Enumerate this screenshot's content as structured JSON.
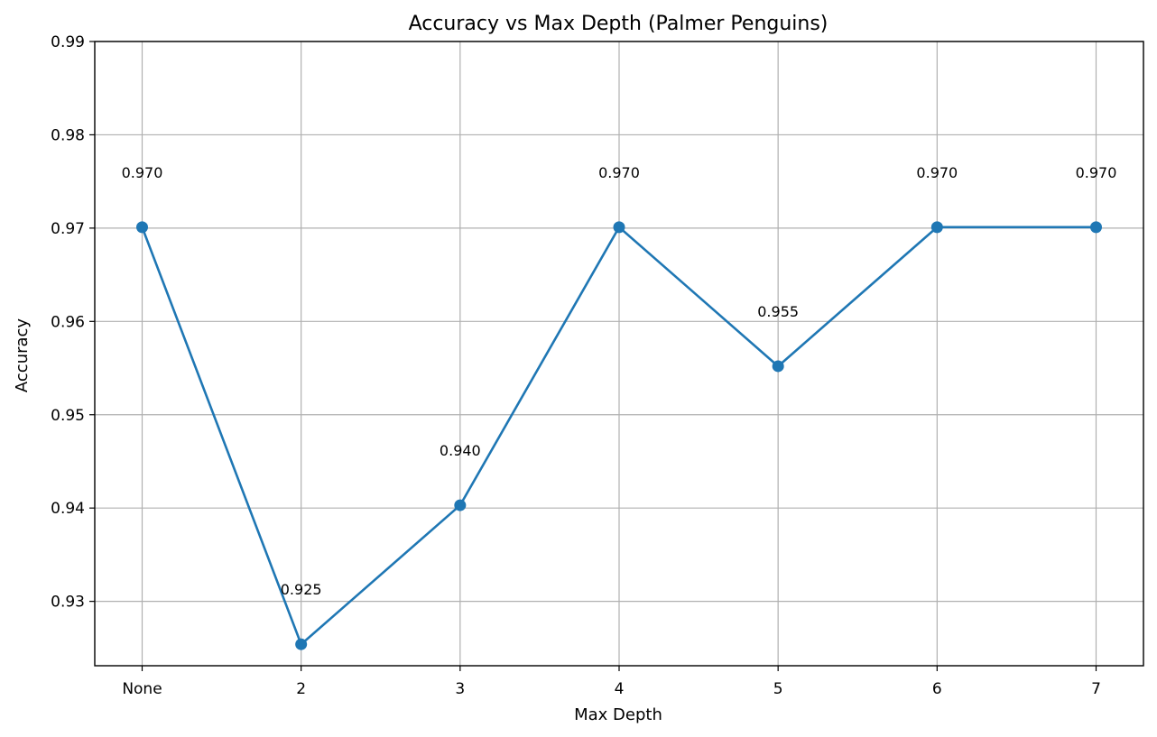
{
  "chart_data": {
    "type": "line",
    "title": "Accuracy vs Max Depth (Palmer Penguins)",
    "xlabel": "Max Depth",
    "ylabel": "Accuracy",
    "categories": [
      "None",
      "2",
      "3",
      "4",
      "5",
      "6",
      "7"
    ],
    "series": [
      {
        "values": [
          0.9701,
          0.9254,
          0.9403,
          0.9701,
          0.9552,
          0.9701,
          0.9701
        ],
        "labels": [
          "0.970",
          "0.925",
          "0.940",
          "0.970",
          "0.955",
          "0.970",
          "0.970"
        ],
        "color": "#1f77b4"
      }
    ],
    "ylim": [
      0.9231,
      0.99
    ],
    "yticks": [
      0.93,
      0.94,
      0.95,
      0.96,
      0.97,
      0.98,
      0.99
    ],
    "ytick_labels": [
      "0.93",
      "0.94",
      "0.95",
      "0.96",
      "0.97",
      "0.98",
      "0.99"
    ],
    "grid": true,
    "legend": "none",
    "grid_color": "#b0b0b0"
  }
}
